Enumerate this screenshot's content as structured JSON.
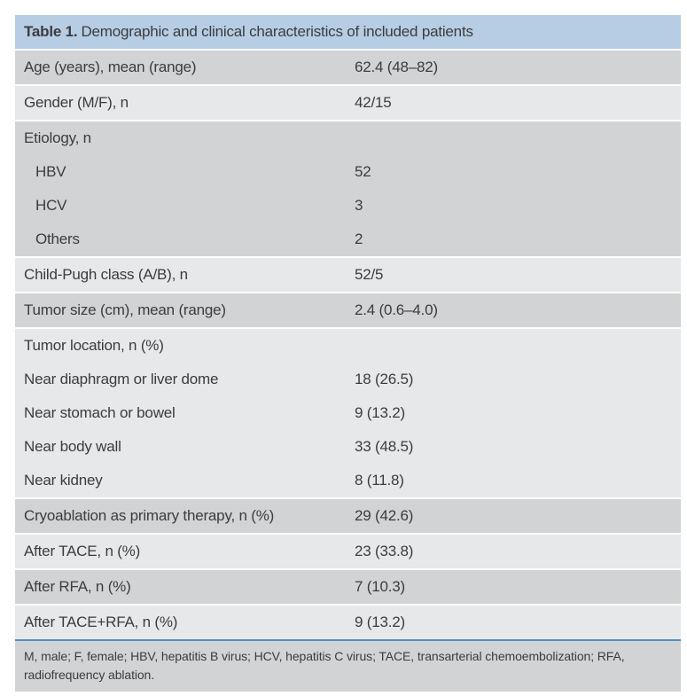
{
  "table": {
    "title_prefix": "Table 1.",
    "title_rest": "Demographic and clinical characteristics of included patients",
    "colors": {
      "header_bg": "#b6cde4",
      "row_dark": "#d2d3d4",
      "row_light": "#e7e8e9",
      "accent_line": "#4a91c3",
      "text": "#3b3c3e"
    },
    "entries": [
      {
        "shade": "dark",
        "rows": [
          {
            "label": "Age (years), mean (range)",
            "value": "62.4 (48–82)"
          }
        ]
      },
      {
        "shade": "light",
        "rows": [
          {
            "label": "Gender (M/F), n",
            "value": "42/15"
          }
        ]
      },
      {
        "shade": "dark",
        "rows": [
          {
            "label": "Etiology, n",
            "value": ""
          },
          {
            "label": "HBV",
            "value": "52"
          },
          {
            "label": "HCV",
            "value": "3"
          },
          {
            "label": "Others",
            "value": "2"
          }
        ]
      },
      {
        "shade": "light",
        "rows": [
          {
            "label": "Child-Pugh class (A/B), n",
            "value": "52/5"
          }
        ]
      },
      {
        "shade": "dark",
        "rows": [
          {
            "label": "Tumor size (cm), mean (range)",
            "value": "2.4 (0.6–4.0)"
          }
        ]
      },
      {
        "shade": "light",
        "rows": [
          {
            "label": "Tumor location, n (%)",
            "value": ""
          },
          {
            "label": "Near diaphragm or liver dome",
            "value": "18 (26.5)"
          },
          {
            "label": "Near stomach or bowel",
            "value": "9 (13.2)"
          },
          {
            "label": "Near body wall",
            "value": "33 (48.5)"
          },
          {
            "label": "Near kidney",
            "value": "8 (11.8)"
          }
        ]
      },
      {
        "shade": "dark",
        "rows": [
          {
            "label": "Cryoablation as primary therapy, n (%)",
            "value": "29 (42.6)"
          }
        ]
      },
      {
        "shade": "light",
        "rows": [
          {
            "label": "After TACE, n (%)",
            "value": "23 (33.8)"
          }
        ]
      },
      {
        "shade": "dark",
        "rows": [
          {
            "label": "After RFA, n (%)",
            "value": "7 (10.3)"
          }
        ]
      },
      {
        "shade": "light",
        "rows": [
          {
            "label": "After TACE+RFA, n (%)",
            "value": "9 (13.2)"
          }
        ]
      }
    ],
    "footnote": "M, male; F, female; HBV, hepatitis B virus; HCV, hepatitis C virus; TACE, transarterial chemoembolization; RFA, radiofrequency ablation."
  }
}
